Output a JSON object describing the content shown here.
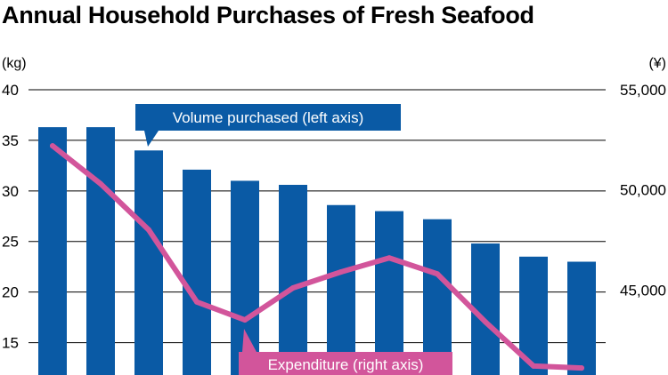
{
  "chart_data": {
    "type": "bar",
    "title": "Annual Household Purchases of Fresh Seafood",
    "y_left_unit": "(kg)",
    "y_right_unit": "(¥)",
    "y_left_ticks": [
      "40",
      "35",
      "30",
      "25",
      "20",
      "15"
    ],
    "y_right_ticks": [
      "55,000",
      "50,000",
      "45,000"
    ],
    "ylim_left": [
      11.8,
      40
    ],
    "ylim_right": [
      40750,
      55000
    ],
    "grid": true,
    "colors": {
      "bars": "#0a5aa5",
      "line": "#d2559b",
      "grid": "#000000"
    },
    "series": [
      {
        "name": "Volume purchased (left axis)",
        "kind": "bar",
        "axis": "left",
        "values": [
          36.3,
          36.3,
          34.0,
          32.1,
          31.0,
          30.6,
          28.6,
          28.0,
          27.2,
          24.8,
          23.5,
          23.0
        ]
      },
      {
        "name": "Expenditure (right axis)",
        "kind": "line",
        "axis": "right",
        "values": [
          52200,
          50300,
          48000,
          44400,
          43500,
          45100,
          45900,
          46600,
          45800,
          43400,
          41200,
          41100
        ]
      }
    ]
  }
}
